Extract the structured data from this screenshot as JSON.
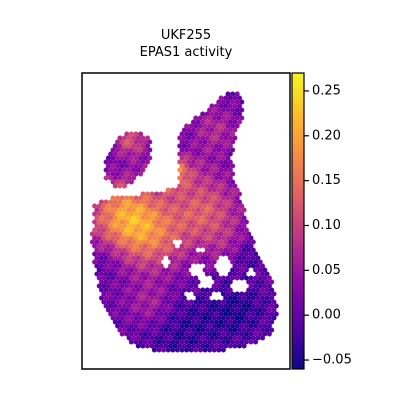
{
  "chart_data": {
    "type": "scatter",
    "title": "UKF255",
    "subtitle": "EPAS1 activity",
    "xlabel": "",
    "ylabel": "",
    "grid": false,
    "legend": "none",
    "colorbar": {
      "colormap": "plasma",
      "range": [
        -0.06,
        0.27
      ],
      "ticks": [
        -0.05,
        0.0,
        0.05,
        0.1,
        0.15,
        0.2,
        0.25
      ],
      "tick_labels": [
        "−0.05",
        "0.00",
        "0.05",
        "0.10",
        "0.15",
        "0.20",
        "0.25"
      ],
      "placement": "right"
    },
    "colors": {
      "plasma": [
        "#0d0887",
        "#5302a3",
        "#8b0aa5",
        "#b83289",
        "#db5c68",
        "#f48849",
        "#febd2a",
        "#f0f921"
      ]
    }
  }
}
